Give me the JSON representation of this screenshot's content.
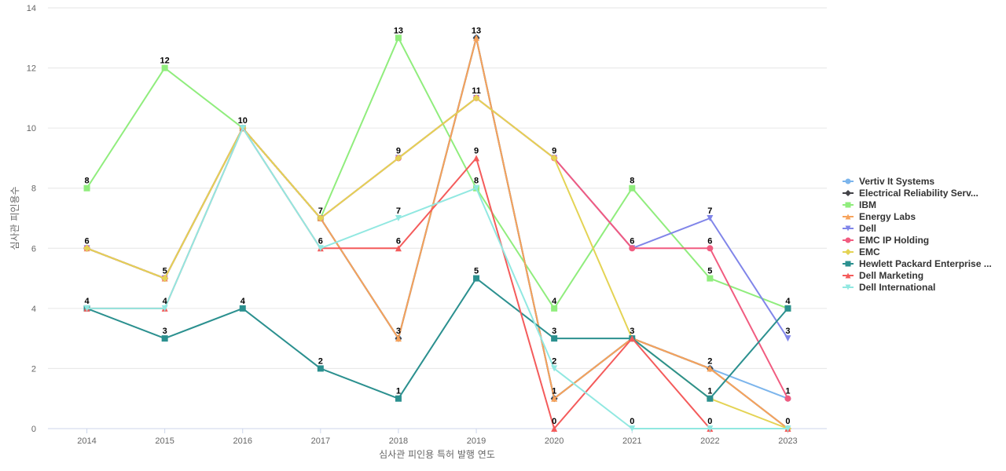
{
  "chart_data": {
    "type": "line",
    "title": "",
    "xlabel": "심사관 피인용 특허 발행 연도",
    "ylabel": "심사관 피인용수",
    "ylim": [
      0,
      14
    ],
    "yticks": [
      0,
      2,
      4,
      6,
      8,
      10,
      12,
      14
    ],
    "x": [
      "2014",
      "2015",
      "2016",
      "2017",
      "2018",
      "2019",
      "2020",
      "2021",
      "2022",
      "2023"
    ],
    "grid": true,
    "legend_position": "right",
    "series": [
      {
        "name": "Vertiv It Systems",
        "color": "#7cb5ec",
        "marker": "circle",
        "values": [
          6,
          5,
          10,
          7,
          3,
          13,
          1,
          3,
          2,
          1
        ]
      },
      {
        "name": "Electrical Reliability Serv...",
        "color": "#434348",
        "marker": "diamond",
        "values": [
          6,
          5,
          10,
          7,
          3,
          13,
          1,
          3,
          2,
          0
        ]
      },
      {
        "name": "IBM",
        "color": "#90ed7d",
        "marker": "square",
        "values": [
          8,
          12,
          10,
          7,
          13,
          8,
          4,
          8,
          5,
          4
        ]
      },
      {
        "name": "Energy Labs",
        "color": "#f7a35c",
        "marker": "triangle",
        "values": [
          6,
          5,
          10,
          7,
          3,
          13,
          1,
          3,
          2,
          0
        ]
      },
      {
        "name": "Dell",
        "color": "#8085e9",
        "marker": "triangle-down",
        "values": [
          6,
          5,
          10,
          7,
          9,
          11,
          9,
          6,
          7,
          3
        ]
      },
      {
        "name": "EMC IP Holding",
        "color": "#f15c80",
        "marker": "circle",
        "values": [
          6,
          5,
          10,
          7,
          9,
          11,
          9,
          6,
          6,
          1
        ]
      },
      {
        "name": "EMC",
        "color": "#e4d354",
        "marker": "diamond",
        "values": [
          6,
          5,
          10,
          7,
          9,
          11,
          9,
          3,
          1,
          0
        ]
      },
      {
        "name": "Hewlett Packard Enterprise ...",
        "color": "#2b908f",
        "marker": "square",
        "values": [
          4,
          3,
          4,
          2,
          1,
          5,
          3,
          3,
          1,
          4
        ]
      },
      {
        "name": "Dell Marketing",
        "color": "#f45b5b",
        "marker": "triangle",
        "values": [
          4,
          4,
          10,
          6,
          6,
          9,
          0,
          3,
          0,
          0
        ]
      },
      {
        "name": "Dell International",
        "color": "#91e8e1",
        "marker": "triangle-down",
        "values": [
          4,
          4,
          10,
          6,
          7,
          8,
          2,
          0,
          0,
          0
        ]
      }
    ],
    "data_labels": [
      {
        "x": "2014",
        "value": 8
      },
      {
        "x": "2014",
        "value": 6
      },
      {
        "x": "2014",
        "value": 4
      },
      {
        "x": "2015",
        "value": 12
      },
      {
        "x": "2015",
        "value": 5
      },
      {
        "x": "2015",
        "value": 4
      },
      {
        "x": "2015",
        "value": 3
      },
      {
        "x": "2016",
        "value": 10
      },
      {
        "x": "2016",
        "value": 4
      },
      {
        "x": "2017",
        "value": 7
      },
      {
        "x": "2017",
        "value": 6
      },
      {
        "x": "2017",
        "value": 2
      },
      {
        "x": "2018",
        "value": 13
      },
      {
        "x": "2018",
        "value": 9
      },
      {
        "x": "2018",
        "value": 7
      },
      {
        "x": "2018",
        "value": 6
      },
      {
        "x": "2018",
        "value": 3
      },
      {
        "x": "2018",
        "value": 1
      },
      {
        "x": "2019",
        "value": 13
      },
      {
        "x": "2019",
        "value": 11
      },
      {
        "x": "2019",
        "value": 9
      },
      {
        "x": "2019",
        "value": 8
      },
      {
        "x": "2019",
        "value": 5
      },
      {
        "x": "2020",
        "value": 9
      },
      {
        "x": "2020",
        "value": 4
      },
      {
        "x": "2020",
        "value": 3
      },
      {
        "x": "2020",
        "value": 2
      },
      {
        "x": "2020",
        "value": 1
      },
      {
        "x": "2020",
        "value": 0
      },
      {
        "x": "2021",
        "value": 8
      },
      {
        "x": "2021",
        "value": 6
      },
      {
        "x": "2021",
        "value": 3
      },
      {
        "x": "2021",
        "value": 0
      },
      {
        "x": "2022",
        "value": 7
      },
      {
        "x": "2022",
        "value": 6
      },
      {
        "x": "2022",
        "value": 5
      },
      {
        "x": "2022",
        "value": 2
      },
      {
        "x": "2022",
        "value": 1
      },
      {
        "x": "2022",
        "value": 0
      },
      {
        "x": "2023",
        "value": 4
      },
      {
        "x": "2023",
        "value": 3
      },
      {
        "x": "2023",
        "value": 1
      },
      {
        "x": "2023",
        "value": 0
      }
    ]
  }
}
